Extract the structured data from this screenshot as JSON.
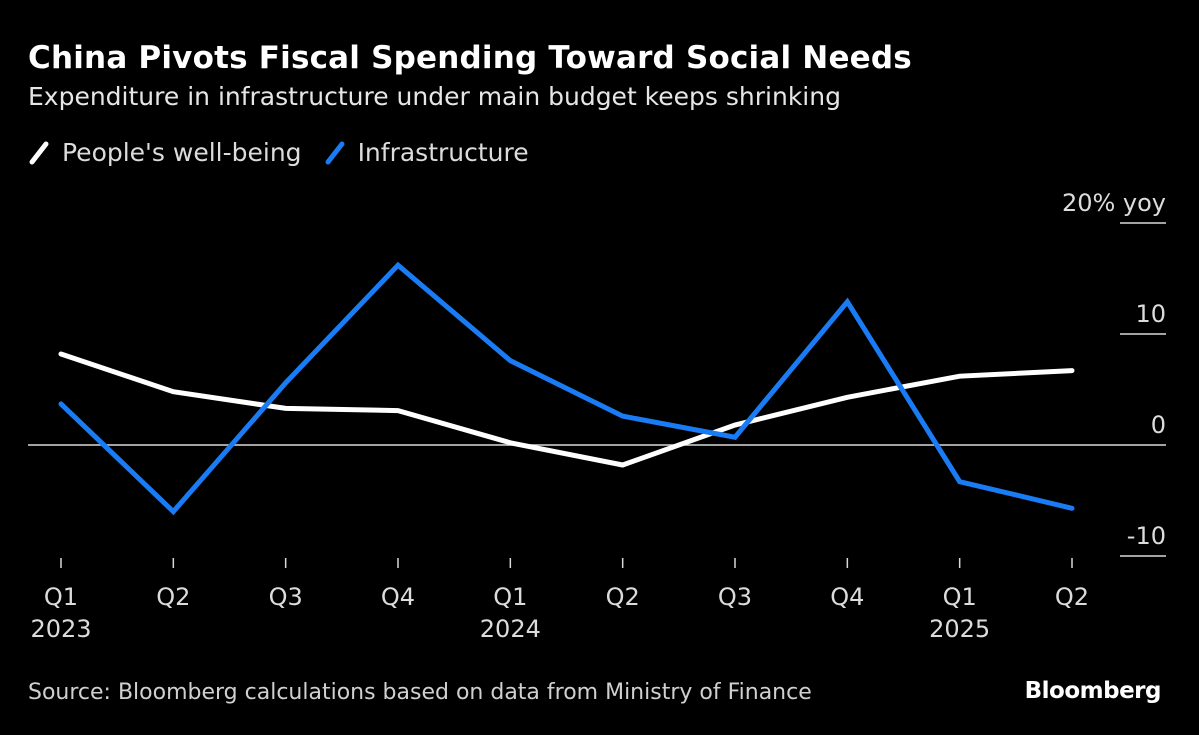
{
  "header": {
    "title": "China Pivots Fiscal Spending Toward Social Needs",
    "subtitle": "Expenditure in infrastructure under main budget keeps shrinking"
  },
  "legend": [
    {
      "name": "People's well-being",
      "color": "#ffffff"
    },
    {
      "name": "Infrastructure",
      "color": "#1a7cf5"
    }
  ],
  "footer": {
    "source": "Source: Bloomberg calculations based on data from Ministry of Finance",
    "logo": "Bloomberg"
  },
  "chart_data": {
    "type": "line",
    "title": "China Pivots Fiscal Spending Toward Social Needs",
    "subtitle": "Expenditure in infrastructure under main budget keeps shrinking",
    "xlabel": "",
    "ylabel": "% yoy",
    "categories": [
      "Q1 2023",
      "Q2 2023",
      "Q3 2023",
      "Q4 2023",
      "Q1 2024",
      "Q2 2024",
      "Q3 2024",
      "Q4 2024",
      "Q1 2025",
      "Q2 2025"
    ],
    "x_tick_labels": [
      {
        "quarter": "Q1",
        "year": "2023"
      },
      {
        "quarter": "Q2",
        "year": ""
      },
      {
        "quarter": "Q3",
        "year": ""
      },
      {
        "quarter": "Q4",
        "year": ""
      },
      {
        "quarter": "Q1",
        "year": "2024"
      },
      {
        "quarter": "Q2",
        "year": ""
      },
      {
        "quarter": "Q3",
        "year": ""
      },
      {
        "quarter": "Q4",
        "year": ""
      },
      {
        "quarter": "Q1",
        "year": "2025"
      },
      {
        "quarter": "Q2",
        "year": ""
      }
    ],
    "y_ticks": [
      {
        "value": 20,
        "label": "20% yoy"
      },
      {
        "value": 10,
        "label": "10"
      },
      {
        "value": 0,
        "label": "0"
      },
      {
        "value": -10,
        "label": "-10"
      }
    ],
    "ylim": [
      -10,
      20
    ],
    "grid": false,
    "zero_line": true,
    "legend_position": "top-left",
    "y_axis_side": "right",
    "series": [
      {
        "name": "People's well-being",
        "color": "#ffffff",
        "values": [
          8.2,
          4.8,
          3.3,
          3.1,
          0.2,
          -1.8,
          1.8,
          4.3,
          6.2,
          6.7
        ]
      },
      {
        "name": "Infrastructure",
        "color": "#1a7cf5",
        "values": [
          3.7,
          -6.0,
          5.6,
          16.2,
          7.6,
          2.6,
          0.7,
          12.9,
          -3.3,
          -5.7
        ]
      }
    ]
  }
}
